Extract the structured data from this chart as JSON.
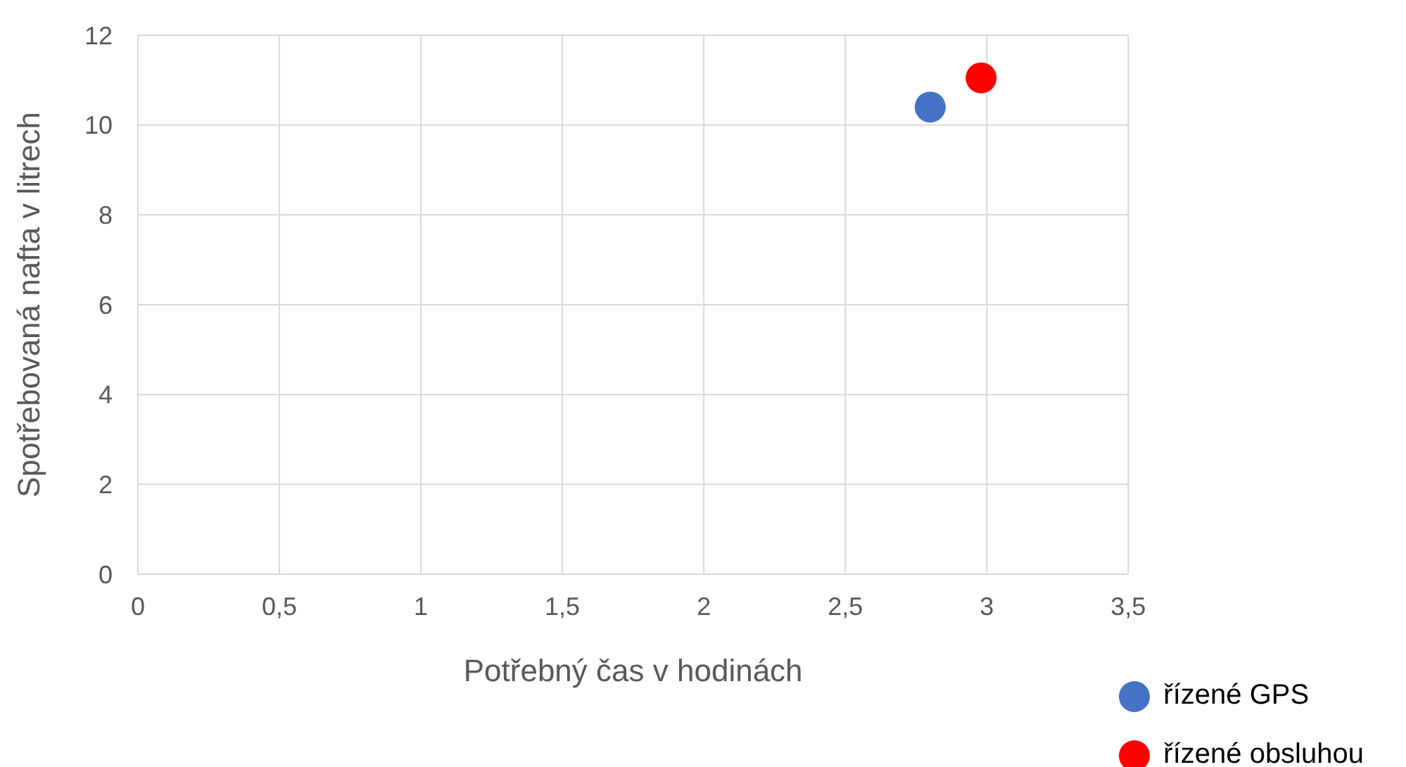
{
  "chart_data": {
    "type": "scatter",
    "xlabel": "Potřebný čas v hodinách",
    "ylabel": "Spotřebovaná nafta v litrech",
    "series": [
      {
        "name": "řízené obsluhou",
        "color": "#ff0000",
        "x": [
          2.98
        ],
        "values": [
          11.05
        ]
      },
      {
        "name": "řízené GPS",
        "color": "#4472c4",
        "x": [
          2.8
        ],
        "values": [
          10.4
        ]
      }
    ],
    "xlim": [
      0,
      3.5
    ],
    "xticks": [
      0,
      {
        "value": 0.5,
        "label": "0,5"
      },
      1,
      {
        "value": 1.5,
        "label": "1,5"
      },
      2,
      {
        "value": 2.5,
        "label": "2,5"
      },
      3,
      {
        "value": 3.5,
        "label": "3,5"
      }
    ],
    "ylim": [
      0,
      12
    ],
    "yticks": [
      0,
      2,
      4,
      6,
      8,
      10,
      12
    ],
    "grid": true,
    "legend": "bottom right",
    "marker": "circle"
  }
}
